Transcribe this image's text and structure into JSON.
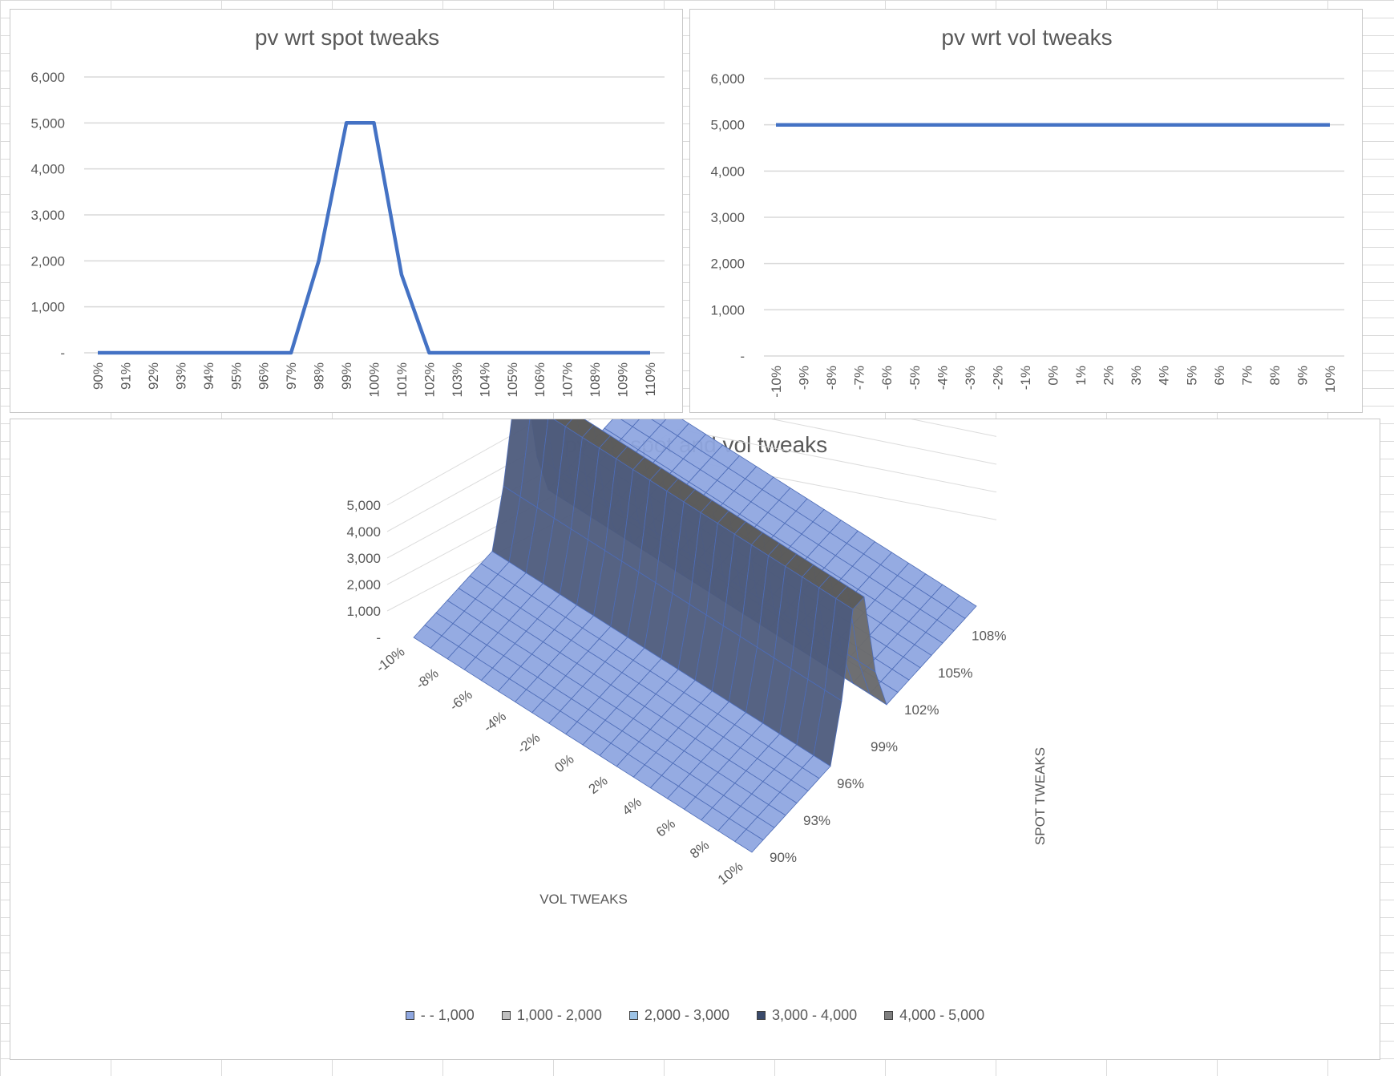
{
  "chart_data": [
    {
      "type": "line",
      "title": "pv wrt spot tweaks",
      "categories": [
        "90%",
        "91%",
        "92%",
        "93%",
        "94%",
        "95%",
        "96%",
        "97%",
        "98%",
        "99%",
        "100%",
        "101%",
        "102%",
        "103%",
        "104%",
        "105%",
        "106%",
        "107%",
        "108%",
        "109%",
        "110%"
      ],
      "series": [
        {
          "values": [
            0,
            0,
            0,
            0,
            0,
            0,
            0,
            0,
            2000,
            5000,
            5000,
            1700,
            0,
            0,
            0,
            0,
            0,
            0,
            0,
            0,
            0
          ]
        }
      ],
      "yticks": [
        "-",
        "1,000",
        "2,000",
        "3,000",
        "4,000",
        "5,000",
        "6,000"
      ],
      "ylim": [
        0,
        6000
      ],
      "grid": true,
      "color": "#4472c4"
    },
    {
      "type": "line",
      "title": "pv wrt vol tweaks",
      "categories": [
        "-10%",
        "-9%",
        "-8%",
        "-7%",
        "-6%",
        "-5%",
        "-4%",
        "-3%",
        "-2%",
        "-1%",
        "0%",
        "1%",
        "2%",
        "3%",
        "4%",
        "5%",
        "6%",
        "7%",
        "8%",
        "9%",
        "10%"
      ],
      "series": [
        {
          "values": [
            5000,
            5000,
            5000,
            5000,
            5000,
            5000,
            5000,
            5000,
            5000,
            5000,
            5000,
            5000,
            5000,
            5000,
            5000,
            5000,
            5000,
            5000,
            5000,
            5000,
            5000
          ]
        }
      ],
      "yticks": [
        "-",
        "1,000",
        "2,000",
        "3,000",
        "4,000",
        "5,000",
        "6,000"
      ],
      "ylim": [
        0,
        6000
      ],
      "grid": true,
      "color": "#4472c4"
    },
    {
      "type": "surface",
      "title": "pv wrt spot and vol tweaks",
      "x_label": "VOL TWEAKS",
      "y_label": "SPOT TWEAKS",
      "x_ticks": [
        "-10%",
        "-8%",
        "-6%",
        "-4%",
        "-2%",
        "0%",
        "2%",
        "4%",
        "6%",
        "8%",
        "10%"
      ],
      "y_ticks": [
        "90%",
        "93%",
        "96%",
        "99%",
        "102%",
        "105%",
        "108%"
      ],
      "z_ticks": [
        "-",
        "1,000",
        "2,000",
        "3,000",
        "4,000",
        "5,000"
      ],
      "spot_profile": [
        0,
        0,
        0,
        0,
        0,
        0,
        0,
        0,
        2000,
        5000,
        5000,
        1700,
        0,
        0,
        0,
        0,
        0,
        0,
        0,
        0,
        0
      ],
      "vol_steps": 21,
      "legend": [
        {
          "label": "-   - 1,000",
          "color": "#8fa7e0"
        },
        {
          "label": "1,000 - 2,000",
          "color": "#bfbfbf"
        },
        {
          "label": "2,000 - 3,000",
          "color": "#9dc3e6"
        },
        {
          "label": "3,000 - 4,000",
          "color": "#3a4a6b"
        },
        {
          "label": "4,000 - 5,000",
          "color": "#7f7f7f"
        }
      ],
      "band_colors": [
        "#8fa7e0",
        "#6e6e6e",
        "#5b8fc2",
        "#2f3a57",
        "#555555"
      ]
    }
  ]
}
